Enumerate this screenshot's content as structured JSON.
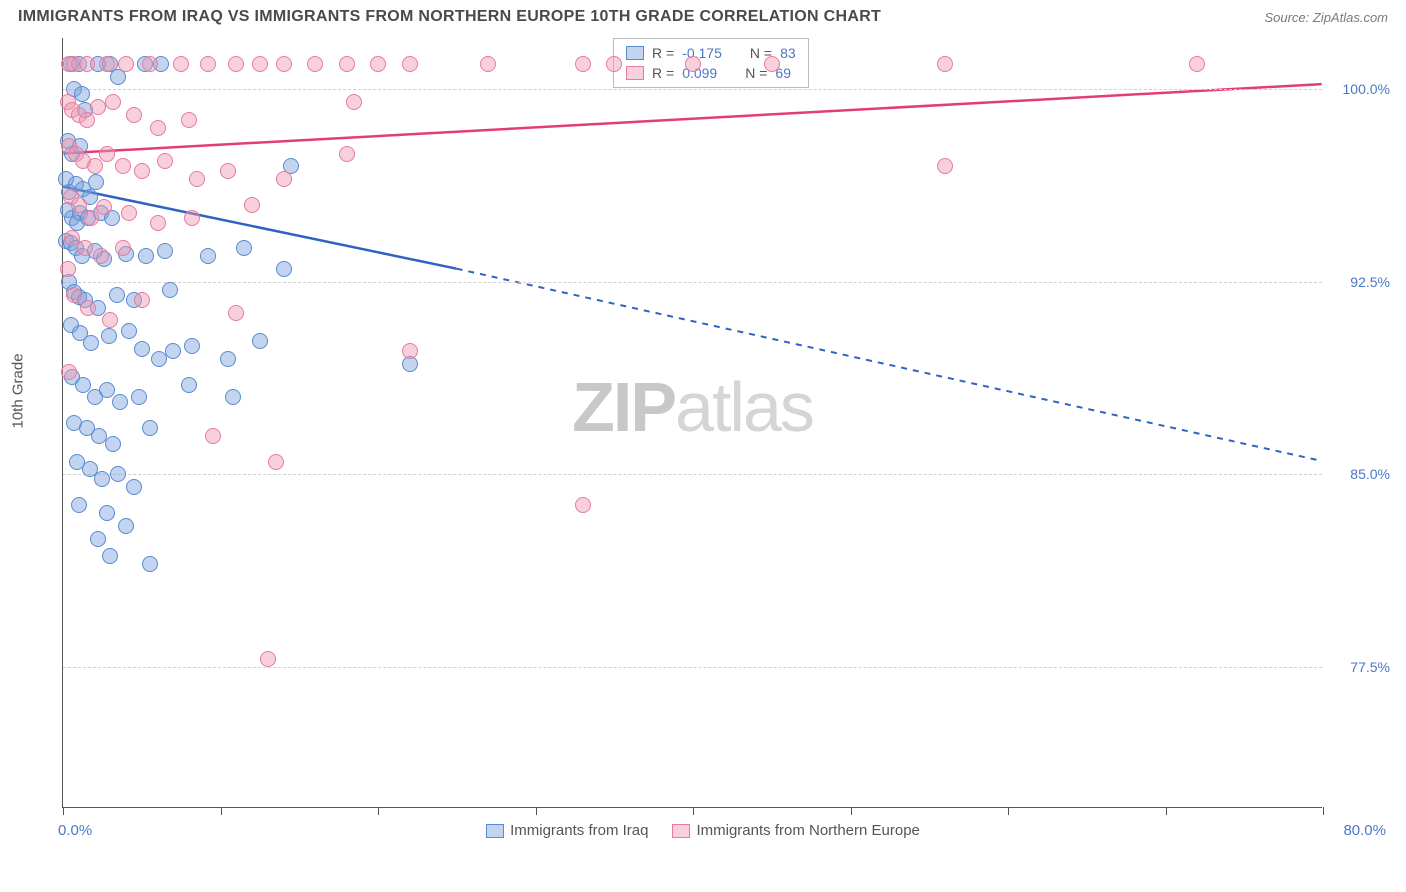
{
  "header": {
    "title": "IMMIGRANTS FROM IRAQ VS IMMIGRANTS FROM NORTHERN EUROPE 10TH GRADE CORRELATION CHART",
    "source": "Source: ZipAtlas.com"
  },
  "axes": {
    "y_title": "10th Grade",
    "x_min_label": "0.0%",
    "x_max_label": "80.0%",
    "x_min": 0,
    "x_max": 80,
    "y_min": 72,
    "y_max": 102,
    "y_ticks": [
      {
        "v": 100.0,
        "label": "100.0%"
      },
      {
        "v": 92.5,
        "label": "92.5%"
      },
      {
        "v": 85.0,
        "label": "85.0%"
      },
      {
        "v": 77.5,
        "label": "77.5%"
      }
    ],
    "x_ticks": [
      0,
      10,
      20,
      30,
      40,
      50,
      60,
      70,
      80
    ],
    "grid_color": "#d0d0d0",
    "axis_color": "#555555",
    "tick_label_color": "#4a78c8"
  },
  "watermark": {
    "bold": "ZIP",
    "rest": "atlas"
  },
  "series": [
    {
      "id": "iraq",
      "label": "Immigrants from Iraq",
      "color_fill": "rgba(120,160,220,0.45)",
      "color_stroke": "#5a8bd0",
      "trend_color": "#2f63c0",
      "trend_width": 2.5,
      "R": "-0.175",
      "N": "83",
      "trend": {
        "x1": 0,
        "y1": 96.2,
        "x2_solid": 25,
        "y2_solid": 93.0,
        "x2": 80,
        "y2": 85.5
      },
      "dot_radius": 8,
      "points": [
        [
          0.5,
          101
        ],
        [
          0.7,
          100
        ],
        [
          1.0,
          101
        ],
        [
          1.2,
          99.8
        ],
        [
          1.4,
          99.2
        ],
        [
          0.3,
          98
        ],
        [
          0.6,
          97.5
        ],
        [
          1.1,
          97.8
        ],
        [
          2.2,
          101
        ],
        [
          3.0,
          101
        ],
        [
          3.5,
          100.5
        ],
        [
          5.2,
          101
        ],
        [
          6.2,
          101
        ],
        [
          0.2,
          96.5
        ],
        [
          0.4,
          96.0
        ],
        [
          0.8,
          96.3
        ],
        [
          1.3,
          96.1
        ],
        [
          1.7,
          95.8
        ],
        [
          2.1,
          96.4
        ],
        [
          0.3,
          95.3
        ],
        [
          0.6,
          95.0
        ],
        [
          0.9,
          94.8
        ],
        [
          1.1,
          95.2
        ],
        [
          1.6,
          95.0
        ],
        [
          2.4,
          95.2
        ],
        [
          3.1,
          95.0
        ],
        [
          0.2,
          94.1
        ],
        [
          0.5,
          94.0
        ],
        [
          0.8,
          93.8
        ],
        [
          1.2,
          93.5
        ],
        [
          2.0,
          93.7
        ],
        [
          2.6,
          93.4
        ],
        [
          4.0,
          93.6
        ],
        [
          5.3,
          93.5
        ],
        [
          6.5,
          93.7
        ],
        [
          9.2,
          93.5
        ],
        [
          11.5,
          93.8
        ],
        [
          0.4,
          92.5
        ],
        [
          0.7,
          92.1
        ],
        [
          1.0,
          91.9
        ],
        [
          1.4,
          91.8
        ],
        [
          2.2,
          91.5
        ],
        [
          3.4,
          92.0
        ],
        [
          4.5,
          91.8
        ],
        [
          6.8,
          92.2
        ],
        [
          0.5,
          90.8
        ],
        [
          1.1,
          90.5
        ],
        [
          1.8,
          90.1
        ],
        [
          2.9,
          90.4
        ],
        [
          4.2,
          90.6
        ],
        [
          5.0,
          89.9
        ],
        [
          6.1,
          89.5
        ],
        [
          7.0,
          89.8
        ],
        [
          8.2,
          90.0
        ],
        [
          10.5,
          89.5
        ],
        [
          12.5,
          90.2
        ],
        [
          14.0,
          93.0
        ],
        [
          0.6,
          88.8
        ],
        [
          1.3,
          88.5
        ],
        [
          2.0,
          88.0
        ],
        [
          2.8,
          88.3
        ],
        [
          3.6,
          87.8
        ],
        [
          4.8,
          88.0
        ],
        [
          0.7,
          87.0
        ],
        [
          1.5,
          86.8
        ],
        [
          2.3,
          86.5
        ],
        [
          3.2,
          86.2
        ],
        [
          5.5,
          86.8
        ],
        [
          8.0,
          88.5
        ],
        [
          10.8,
          88.0
        ],
        [
          0.9,
          85.5
        ],
        [
          1.7,
          85.2
        ],
        [
          2.5,
          84.8
        ],
        [
          3.5,
          85.0
        ],
        [
          4.5,
          84.5
        ],
        [
          1.0,
          83.8
        ],
        [
          2.8,
          83.5
        ],
        [
          4.0,
          83.0
        ],
        [
          2.2,
          82.5
        ],
        [
          3.0,
          81.8
        ],
        [
          5.5,
          81.5
        ],
        [
          22.0,
          89.3
        ],
        [
          14.5,
          97.0
        ]
      ]
    },
    {
      "id": "neurope",
      "label": "Immigrants from Northern Europe",
      "color_fill": "rgba(240,150,175,0.45)",
      "color_stroke": "#e67ba0",
      "trend_color": "#e23d7a",
      "trend_width": 2.5,
      "R": "0.099",
      "N": "69",
      "trend": {
        "x1": 0,
        "y1": 97.5,
        "x2_solid": 80,
        "y2_solid": 100.2,
        "x2": 80,
        "y2": 100.2
      },
      "dot_radius": 8,
      "points": [
        [
          0.4,
          101
        ],
        [
          0.7,
          101
        ],
        [
          1.5,
          101
        ],
        [
          2.8,
          101
        ],
        [
          4.0,
          101
        ],
        [
          5.5,
          101
        ],
        [
          7.5,
          101
        ],
        [
          9.2,
          101
        ],
        [
          11.0,
          101
        ],
        [
          12.5,
          101
        ],
        [
          14.0,
          101
        ],
        [
          16.0,
          101
        ],
        [
          18.0,
          101
        ],
        [
          20.0,
          101
        ],
        [
          22.0,
          101
        ],
        [
          27.0,
          101
        ],
        [
          33.0,
          101
        ],
        [
          35.0,
          101
        ],
        [
          40.0,
          101
        ],
        [
          45.0,
          101
        ],
        [
          56.0,
          101
        ],
        [
          72.0,
          101
        ],
        [
          0.3,
          99.5
        ],
        [
          0.6,
          99.2
        ],
        [
          1.0,
          99.0
        ],
        [
          1.5,
          98.8
        ],
        [
          2.2,
          99.3
        ],
        [
          3.2,
          99.5
        ],
        [
          4.5,
          99.0
        ],
        [
          6.0,
          98.5
        ],
        [
          8.0,
          98.8
        ],
        [
          0.4,
          97.8
        ],
        [
          0.8,
          97.5
        ],
        [
          1.3,
          97.2
        ],
        [
          2.0,
          97.0
        ],
        [
          2.8,
          97.5
        ],
        [
          3.8,
          97.0
        ],
        [
          5.0,
          96.8
        ],
        [
          6.5,
          97.2
        ],
        [
          8.5,
          96.5
        ],
        [
          10.5,
          96.8
        ],
        [
          14.0,
          96.5
        ],
        [
          56.0,
          97.0
        ],
        [
          0.5,
          95.8
        ],
        [
          1.0,
          95.5
        ],
        [
          1.8,
          95.0
        ],
        [
          2.6,
          95.4
        ],
        [
          4.2,
          95.2
        ],
        [
          6.0,
          94.8
        ],
        [
          8.2,
          95.0
        ],
        [
          0.6,
          94.2
        ],
        [
          1.4,
          93.8
        ],
        [
          2.4,
          93.5
        ],
        [
          3.8,
          93.8
        ],
        [
          12.0,
          95.5
        ],
        [
          18.0,
          97.5
        ],
        [
          0.7,
          92.0
        ],
        [
          1.6,
          91.5
        ],
        [
          3.0,
          91.0
        ],
        [
          5.0,
          91.8
        ],
        [
          11.0,
          91.3
        ],
        [
          22.0,
          89.8
        ],
        [
          9.5,
          86.5
        ],
        [
          13.5,
          85.5
        ],
        [
          33.0,
          83.8
        ],
        [
          0.3,
          93.0
        ],
        [
          0.4,
          89.0
        ],
        [
          13.0,
          77.8
        ],
        [
          18.5,
          99.5
        ]
      ]
    }
  ],
  "legend_box": {
    "rows": [
      {
        "swatch_fill": "rgba(120,160,220,0.45)",
        "swatch_stroke": "#5a8bd0",
        "r_label": "R =",
        "r_val": "-0.175",
        "n_label": "N =",
        "n_val": "83"
      },
      {
        "swatch_fill": "rgba(240,150,175,0.45)",
        "swatch_stroke": "#e67ba0",
        "r_label": "R =",
        "r_val": "0.099",
        "n_label": "N =",
        "n_val": "69"
      }
    ]
  },
  "bottom_legend": [
    {
      "swatch_fill": "rgba(120,160,220,0.45)",
      "swatch_stroke": "#5a8bd0",
      "label": "Immigrants from Iraq"
    },
    {
      "swatch_fill": "rgba(240,150,175,0.45)",
      "swatch_stroke": "#e67ba0",
      "label": "Immigrants from Northern Europe"
    }
  ]
}
